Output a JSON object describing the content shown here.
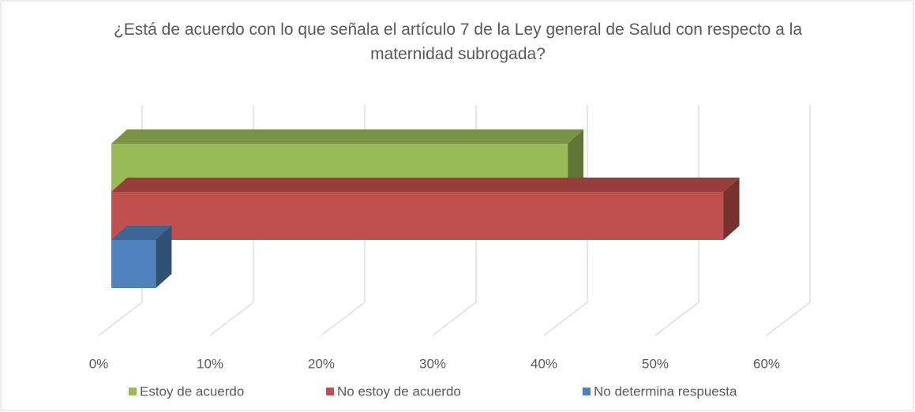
{
  "chart_data": {
    "type": "bar3d",
    "title": "¿Está de acuerdo con lo que señala el artículo 7 de la Ley general de Salud con respecto a la maternidad subrogada?",
    "categories": [
      null
    ],
    "series": [
      {
        "name": "Estoy de acuerdo",
        "color": "#9bbb59",
        "values": [
          41
        ]
      },
      {
        "name": "No  estoy de acuerdo",
        "color": "#c0504d",
        "values": [
          55
        ]
      },
      {
        "name": "No determina respuesta",
        "color": "#4f81bd",
        "values": [
          4
        ]
      }
    ],
    "xlim": [
      0,
      60
    ],
    "xticks": [
      {
        "value": 0,
        "label": "0%"
      },
      {
        "value": 10,
        "label": "10%"
      },
      {
        "value": 20,
        "label": "20%"
      },
      {
        "value": 30,
        "label": "30%"
      },
      {
        "value": 40,
        "label": "40%"
      },
      {
        "value": 50,
        "label": "50%"
      },
      {
        "value": 60,
        "label": "60%"
      }
    ],
    "grid": true,
    "legend": "bottom"
  }
}
